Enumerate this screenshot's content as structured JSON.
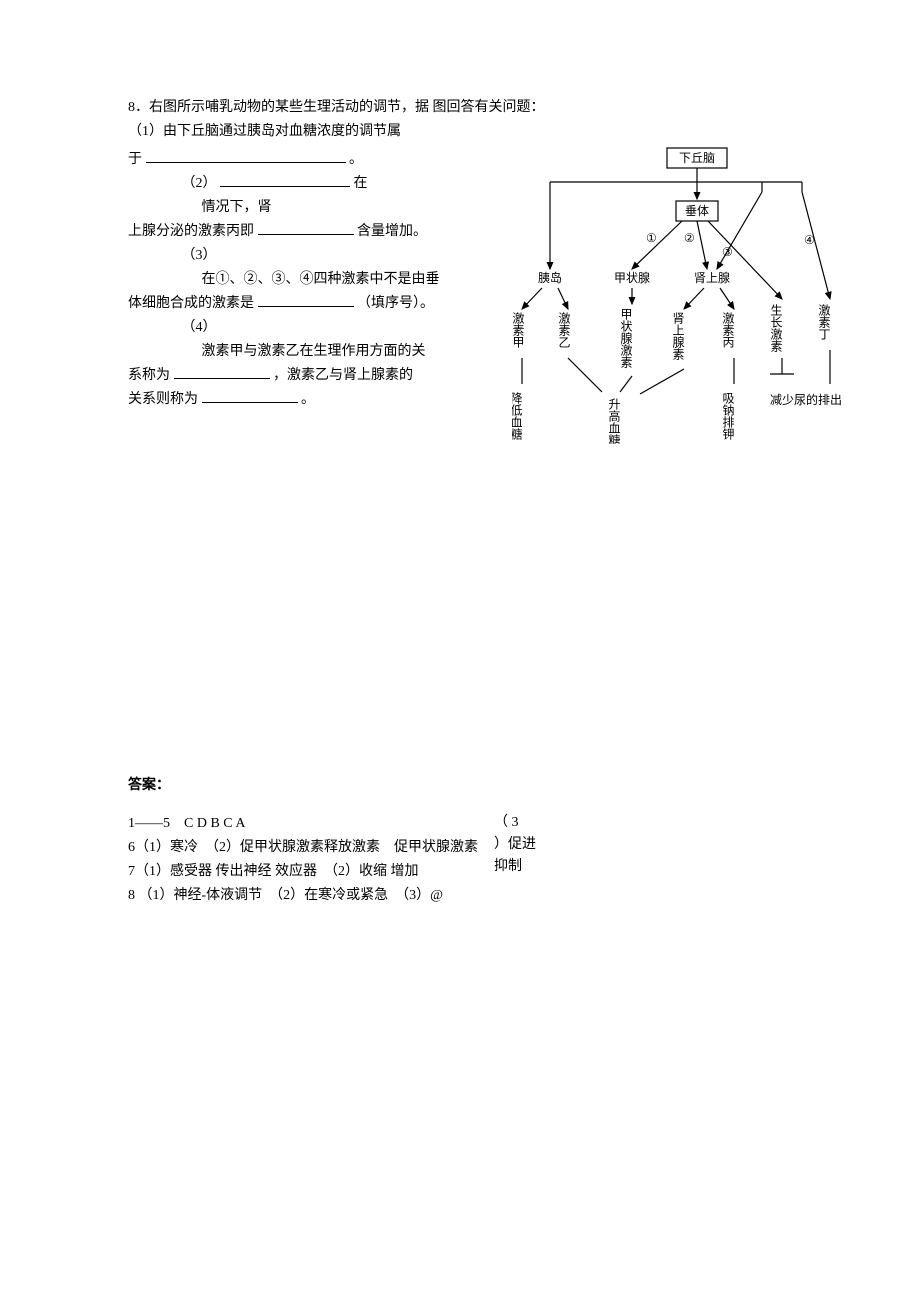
{
  "question": {
    "number": "8．",
    "stem": "右图所示哺乳动物的某些生理活动的调节，据 图回答有关问题：",
    "p1": "（1）由下丘脑通过胰岛对血糖浓度的调节属",
    "p1b_prefix": "于",
    "p1b_suffix": "。",
    "p2a": "（2）",
    "p2a_suffix": "在",
    "p2b": "情况下，肾",
    "p2c_prefix": "上腺分泌的激素丙即",
    "p2c_suffix": "含量增加。",
    "p3a": "（3）",
    "p3b": "在①、②、③、④四种激素中不是由垂",
    "p3c_prefix": "体细胞合成的激素是",
    "p3c_suffix": "（填序号）。",
    "p4a": "（4）",
    "p4b": "激素甲与激素乙在生理作用方面的关",
    "p4c_prefix": "系称为",
    "p4c_mid": "，激素乙与肾上腺素的",
    "p4d_prefix": "关系则称为",
    "p4d_suffix": "。"
  },
  "diagram": {
    "box1": "下丘脑",
    "box2": "垂体",
    "circles": {
      "c1": "①",
      "c2": "②",
      "c3": "③",
      "c4": "④"
    },
    "glands": {
      "g1": "胰岛",
      "g2": "甲状腺",
      "g3": "肾上腺"
    },
    "hormones": {
      "h1": "激素甲",
      "h2": "激素乙",
      "h3": "甲状腺激素",
      "h4": "肾上腺素",
      "h5": "激素丙",
      "h6": "生长激素",
      "h7": "激素丁"
    },
    "effects": {
      "e1": "降低血糖",
      "e2": "升高血糖",
      "e3": "吸钠排钾",
      "e4": "减少尿的排出"
    }
  },
  "answers": {
    "title": "答案：",
    "line1": "1——5　C D B C A",
    "line2": "6（1）寒冷　（2）促甲状腺激素释放激素　促甲状腺激素",
    "line3": "7（1）感受器 传出神经 效应器　（2）收缩 增加",
    "line4": "8 （1）神经-体液调节　（2）在寒冷或紧急　（3）@",
    "right1": "（ 3",
    "right2": "）促进",
    "right3": "抑制"
  },
  "style": {
    "blank_long": 200,
    "blank_med": 130,
    "blank_short": 96,
    "indent1": 50,
    "indent2": 70
  }
}
